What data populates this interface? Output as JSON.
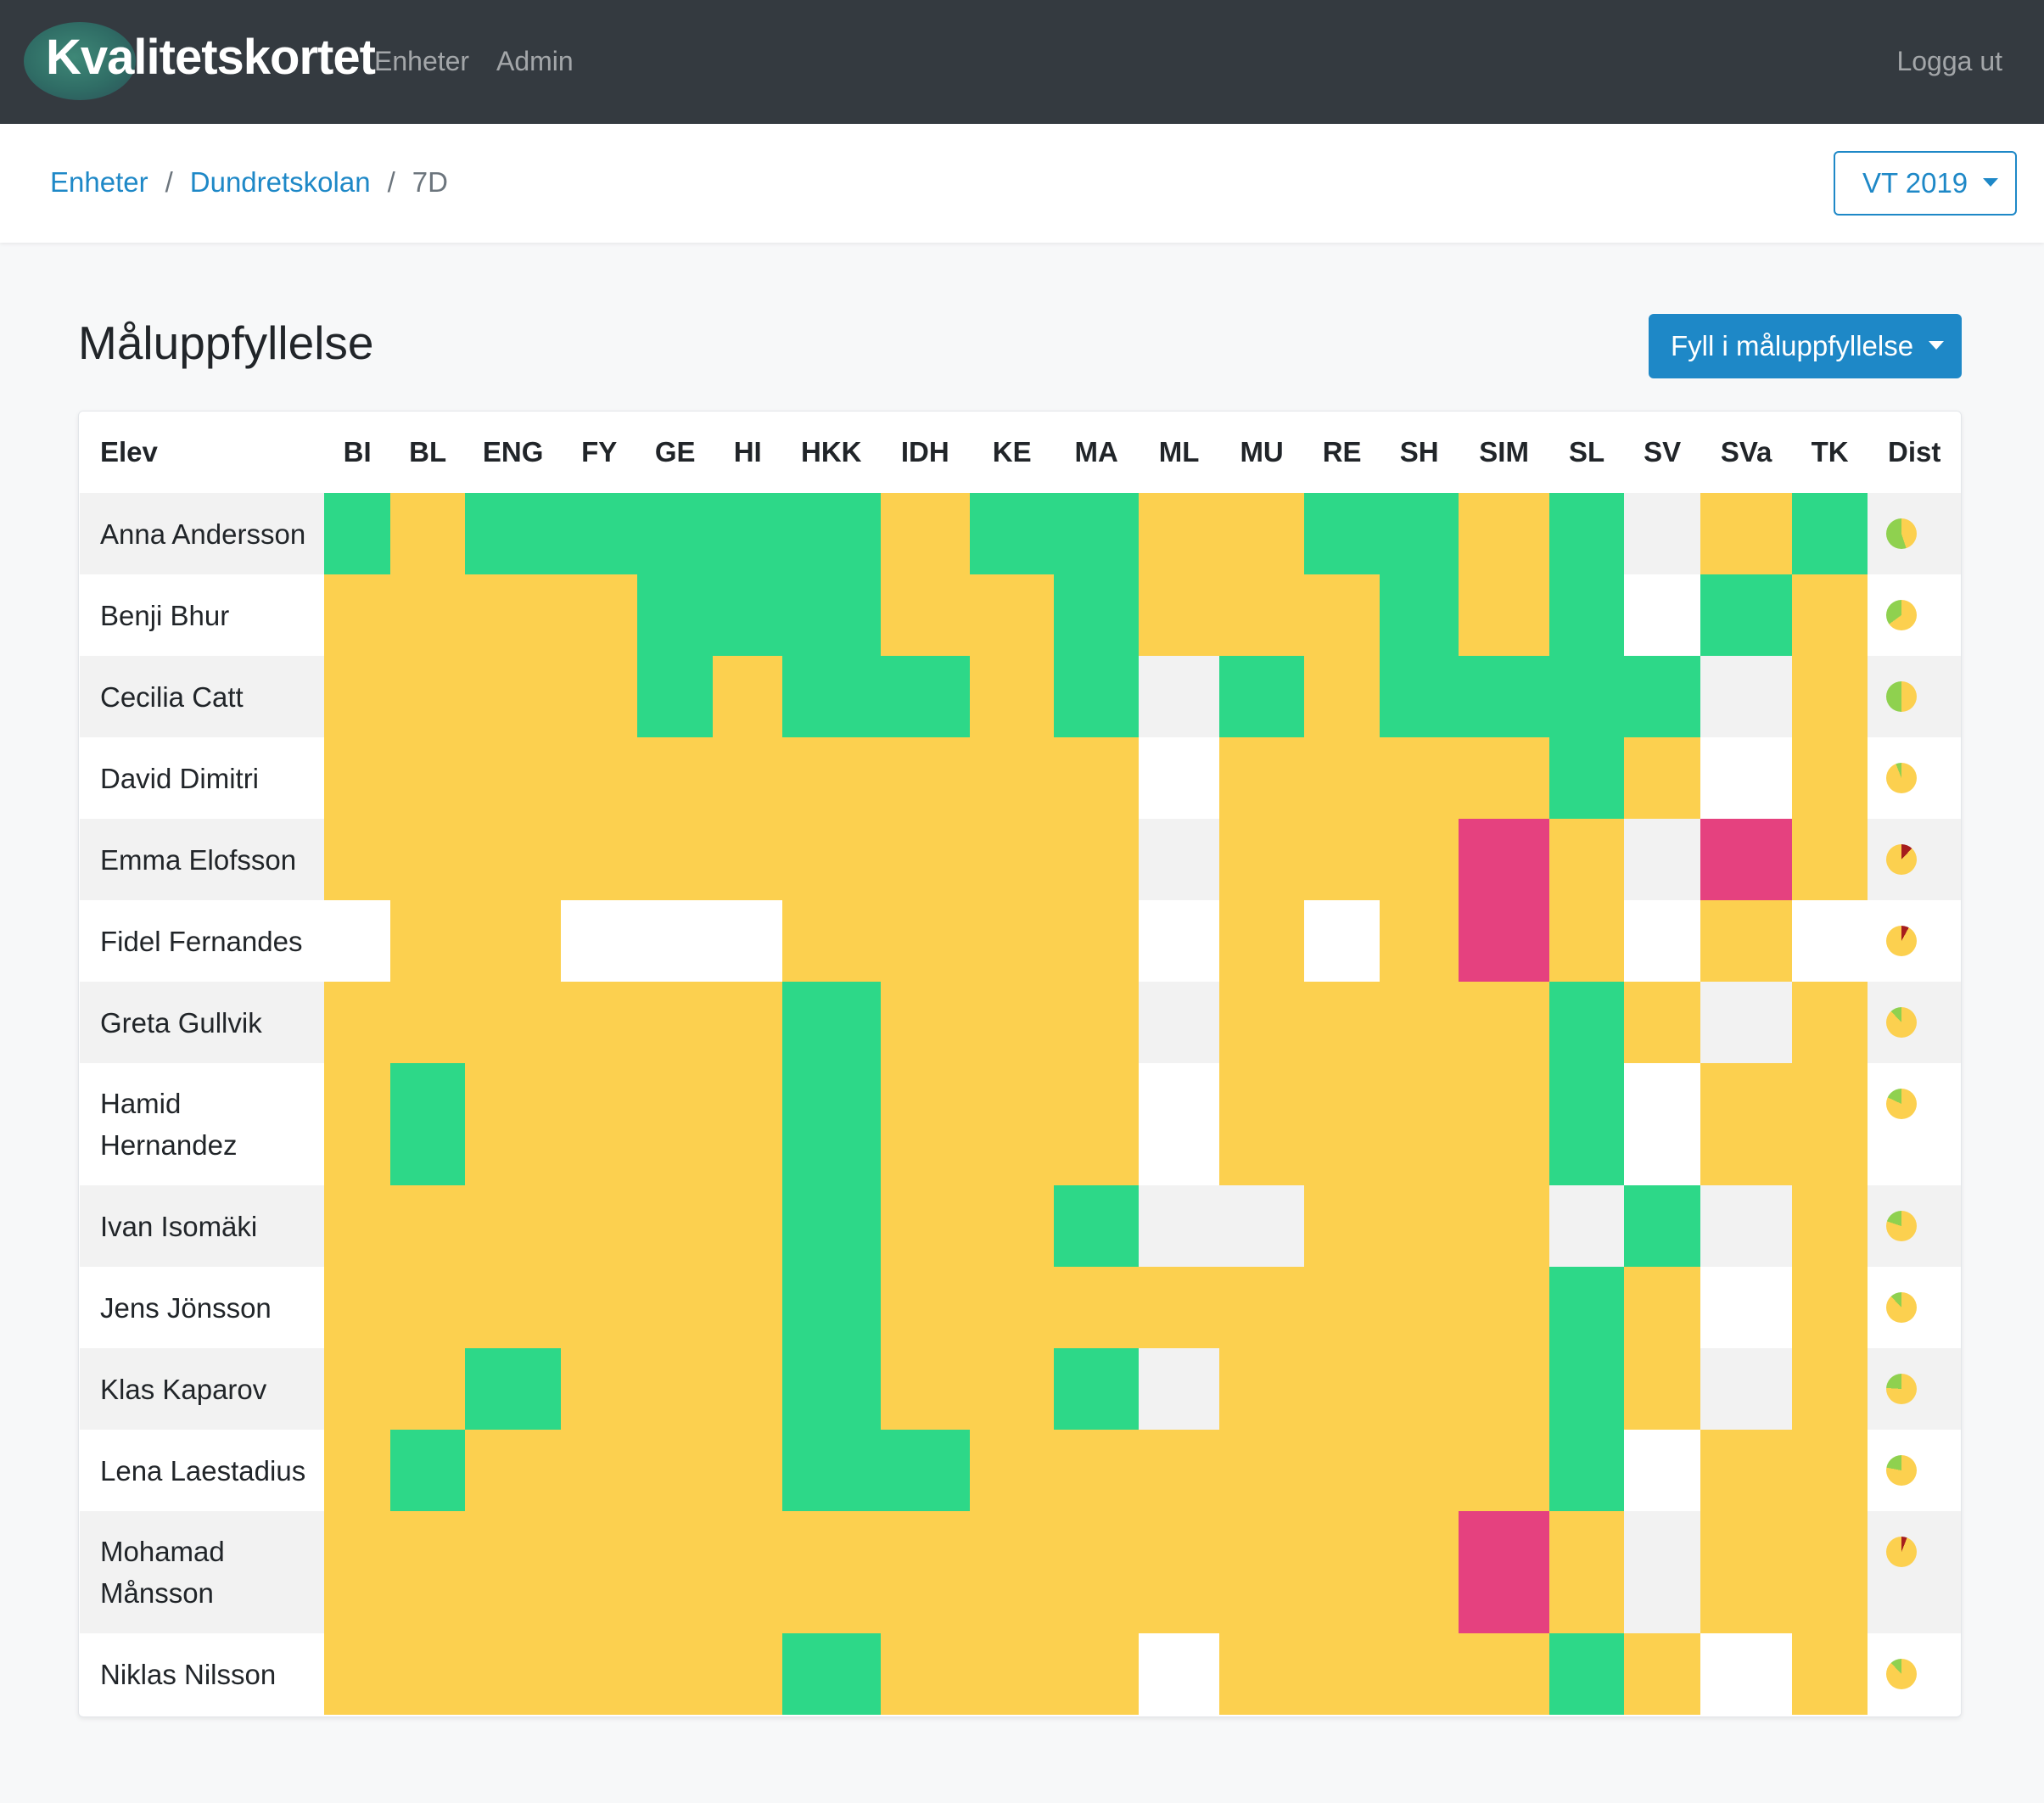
{
  "navbar": {
    "brand": "Kvalitetskortet",
    "links": [
      "Enheter",
      "Admin"
    ],
    "logout": "Logga ut"
  },
  "breadcrumb": {
    "items": [
      "Enheter",
      "Dundretskolan"
    ],
    "current": "7D"
  },
  "term_selector": {
    "label": "VT 2019"
  },
  "page": {
    "title": "Måluppfyllelse",
    "fill_button": "Fyll i måluppfyllelse"
  },
  "colors": {
    "uppnatt": "#2dd888",
    "ej_uppnatt_risk": "#fcd04f",
    "ej_uppnatt": "#e5417f",
    "empty_odd": "#f2f2f2",
    "empty_even": "#ffffff",
    "pie_green": "#8fd14f",
    "pie_yellow": "#fcd04f",
    "pie_red": "#a61d1d",
    "accent": "#1e88c7",
    "navbar_bg": "#343a40"
  },
  "table": {
    "name_header": "Elev",
    "subjects": [
      "BI",
      "BL",
      "ENG",
      "FY",
      "GE",
      "HI",
      "HKK",
      "IDH",
      "KE",
      "MA",
      "ML",
      "MU",
      "RE",
      "SH",
      "SIM",
      "SL",
      "SV",
      "SVa",
      "TK"
    ],
    "dist_header": "Dist",
    "legend_codes": "G = green, Y = yellow, R = red/pink, . = no grade",
    "rows": [
      {
        "name": "Anna Andersson",
        "grades": "GYGGGGGYGGYYGGYG.YG",
        "dist": {
          "green": 0.55,
          "yellow": 0.45,
          "red": 0.0
        }
      },
      {
        "name": "Benji Bhur",
        "grades": "YYYYGGGYYGYYYGYG.GY",
        "dist": {
          "green": 0.35,
          "yellow": 0.65,
          "red": 0.0
        }
      },
      {
        "name": "Cecilia Catt",
        "grades": "YYYYGYGGYG.GYGGGG.Y",
        "dist": {
          "green": 0.5,
          "yellow": 0.5,
          "red": 0.0
        }
      },
      {
        "name": "David Dimitri",
        "grades": "YYYYYYYYYY.YYYYGY.Y",
        "dist": {
          "green": 0.06,
          "yellow": 0.94,
          "red": 0.0
        }
      },
      {
        "name": "Emma Elofsson",
        "grades": "YYYYYYYYYY.YYYRY.RY",
        "dist": {
          "green": 0.0,
          "yellow": 0.88,
          "red": 0.12
        }
      },
      {
        "name": "Fidel Fernandes",
        "grades": ".YY...YYYY.Y.YRY.Y.",
        "dist": {
          "green": 0.0,
          "yellow": 0.92,
          "red": 0.08
        }
      },
      {
        "name": "Greta Gullvik",
        "grades": "YYYYYYGYYY.YYYYGY.Y",
        "dist": {
          "green": 0.12,
          "yellow": 0.88,
          "red": 0.0
        }
      },
      {
        "name": "Hamid Hernandez",
        "grades": "YGYYYYGYYY.YYYYG.YY",
        "dist": {
          "green": 0.18,
          "yellow": 0.82,
          "red": 0.0
        }
      },
      {
        "name": "Ivan Isomäki",
        "grades": "YYYYYYGYYG..YYY.G.Y",
        "dist": {
          "green": 0.2,
          "yellow": 0.8,
          "red": 0.0
        }
      },
      {
        "name": "Jens Jönsson",
        "grades": "YYYYYYGYYYYYYYYGY.Y",
        "dist": {
          "green": 0.12,
          "yellow": 0.88,
          "red": 0.0
        }
      },
      {
        "name": "Klas Kaparov",
        "grades": "YYGYYYGYYG.YYYYGY.Y",
        "dist": {
          "green": 0.24,
          "yellow": 0.76,
          "red": 0.0
        }
      },
      {
        "name": "Lena Laestadius",
        "grades": "YGYYYYGGYYYYYYYG.YY",
        "dist": {
          "green": 0.22,
          "yellow": 0.78,
          "red": 0.0
        }
      },
      {
        "name": "Mohamad Månsson",
        "grades": "YYYYYYYYYYYYYYRY.YY",
        "dist": {
          "green": 0.0,
          "yellow": 0.94,
          "red": 0.06
        }
      },
      {
        "name": "Niklas Nilsson",
        "grades": "YYYYYYGYYY.YYYYGY.Y",
        "dist": {
          "green": 0.12,
          "yellow": 0.88,
          "red": 0.0
        }
      }
    ]
  }
}
